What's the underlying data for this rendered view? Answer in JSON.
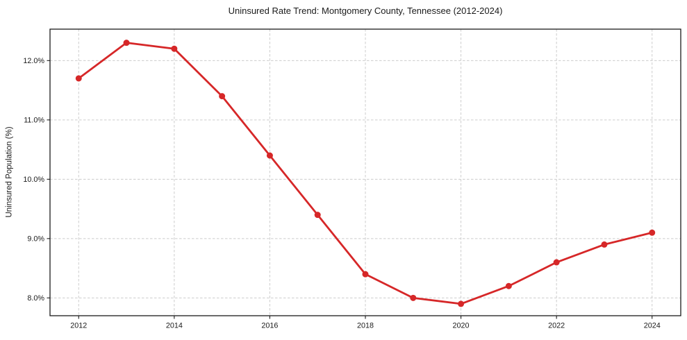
{
  "chart_data": {
    "type": "line",
    "title": "Uninsured Rate Trend: Montgomery County, Tennessee (2012-2024)",
    "xlabel": "",
    "ylabel": "Uninsured Population (%)",
    "x": [
      2012,
      2013,
      2014,
      2015,
      2016,
      2017,
      2018,
      2019,
      2020,
      2021,
      2022,
      2023,
      2024
    ],
    "values": [
      11.7,
      12.3,
      12.2,
      11.4,
      10.4,
      9.4,
      8.4,
      8.0,
      7.9,
      8.2,
      8.6,
      8.9,
      9.1
    ],
    "xticks": [
      2012,
      2014,
      2016,
      2018,
      2020,
      2022,
      2024
    ],
    "xtick_labels": [
      "2012",
      "2014",
      "2016",
      "2018",
      "2020",
      "2022",
      "2024"
    ],
    "yticks": [
      8.0,
      9.0,
      10.0,
      11.0,
      12.0
    ],
    "ytick_labels": [
      "8.0%",
      "9.0%",
      "10.0%",
      "11.0%",
      "12.0%"
    ],
    "xlim": [
      2011.4,
      2024.6
    ],
    "ylim": [
      7.7,
      12.53
    ],
    "grid": true,
    "grid_style": "dashed",
    "legend": "none",
    "marker": "circle",
    "colors": {
      "line": "#d62728",
      "marker": "#d62728",
      "grid": "#cccccc",
      "spine": "#1a1a1a",
      "text": "#1a1a1a",
      "background": "#ffffff"
    }
  }
}
